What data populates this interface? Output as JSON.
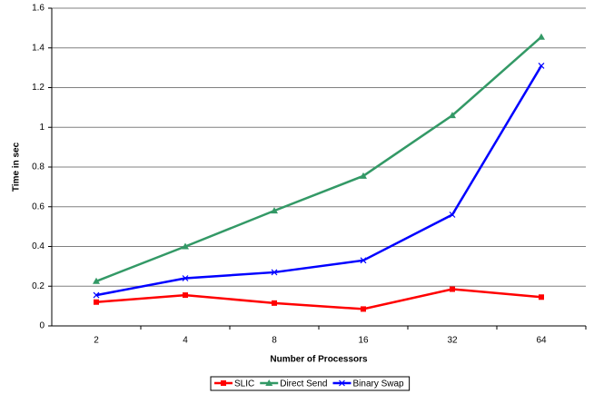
{
  "chart_data": {
    "type": "line",
    "y_label": "Time in sec",
    "x_label": "Number of Processors",
    "categories": [
      "2",
      "4",
      "8",
      "16",
      "32",
      "64"
    ],
    "series": [
      {
        "name": "SLIC",
        "color": "#ff0000",
        "marker": "square",
        "values": [
          0.12,
          0.155,
          0.115,
          0.085,
          0.185,
          0.145
        ]
      },
      {
        "name": "Direct Send",
        "color": "#339966",
        "marker": "triangle",
        "values": [
          0.225,
          0.4,
          0.58,
          0.755,
          1.06,
          1.455
        ]
      },
      {
        "name": "Binary Swap",
        "color": "#0000ff",
        "marker": "x",
        "values": [
          0.155,
          0.24,
          0.27,
          0.33,
          0.56,
          1.31
        ]
      }
    ],
    "ylim": [
      0,
      1.6
    ],
    "yticks": [
      0,
      0.2,
      0.4,
      0.6,
      0.8,
      1,
      1.2,
      1.4,
      1.6
    ],
    "grid": true,
    "legend": "bottom"
  }
}
